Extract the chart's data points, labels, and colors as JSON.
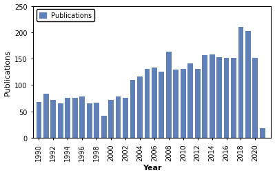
{
  "years": [
    1990,
    1991,
    1992,
    1993,
    1994,
    1995,
    1996,
    1997,
    1998,
    1999,
    2000,
    2001,
    2002,
    2003,
    2004,
    2005,
    2006,
    2007,
    2008,
    2009,
    2010,
    2011,
    2012,
    2013,
    2014,
    2015,
    2016,
    2017,
    2018,
    2019,
    2020,
    2021
  ],
  "values": [
    68,
    83,
    71,
    65,
    75,
    75,
    78,
    65,
    67,
    42,
    72,
    78,
    75,
    110,
    116,
    130,
    133,
    125,
    163,
    129,
    130,
    141,
    130,
    157,
    158,
    153,
    152,
    152,
    210,
    202,
    152,
    18
  ],
  "bar_color": "#6080b8",
  "ylabel": "Publications",
  "xlabel": "Year",
  "legend_label": "Publications",
  "ylim": [
    0,
    250
  ],
  "yticks": [
    0,
    50,
    100,
    150,
    200,
    250
  ],
  "xtick_years": [
    1990,
    1992,
    1994,
    1996,
    1998,
    2000,
    2002,
    2004,
    2006,
    2008,
    2010,
    2012,
    2014,
    2016,
    2018,
    2020
  ],
  "xtick_labels": [
    "1990",
    "1992",
    "1994",
    "1996",
    "1998",
    "2000",
    "2002",
    "2004",
    "2006",
    "2008",
    "2010",
    "2012",
    "2014",
    "2016",
    "2018",
    "2020"
  ],
  "bar_width": 0.75
}
